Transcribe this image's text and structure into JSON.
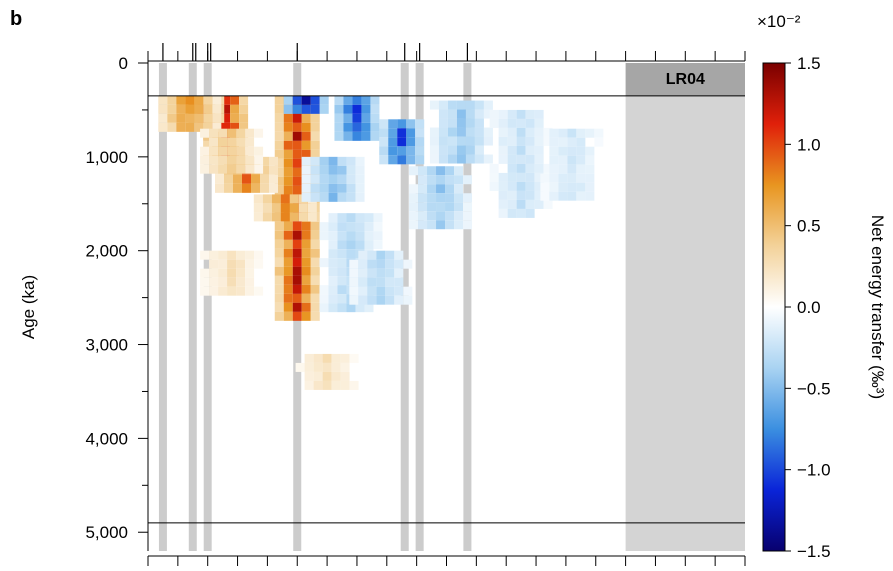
{
  "panel_label": "b",
  "chart_data": {
    "type": "heatmap",
    "ylabel": "Age (ka)",
    "ylim": [
      0,
      5200
    ],
    "y_ticks": [
      0,
      1000,
      2000,
      3000,
      4000,
      5000
    ],
    "y_tick_labels": [
      "0",
      "1,000",
      "2,000",
      "3,000",
      "4,000",
      "5,000"
    ],
    "y_minor_step": 500,
    "x_tick_count": 21,
    "analysis_window_ka": [
      350,
      4900
    ],
    "band_label": "LR04",
    "band_x_range": [
      16,
      20
    ],
    "gray_columns": [
      0.5,
      1.5,
      2.0,
      5.0,
      8.6,
      9.1,
      10.7
    ],
    "top_marker_positions": [
      0.5,
      1.5,
      1.6,
      2.0,
      2.1,
      5.0,
      8.6,
      9.1,
      10.7
    ],
    "colorbar": {
      "label": "Net energy transfer (‰³)",
      "exponent": "×10⁻²",
      "min": -1.5,
      "max": 1.5,
      "tick_values": [
        1.5,
        1.0,
        0.5,
        0.0,
        -0.5,
        -1.0,
        -1.5
      ],
      "tick_labels": [
        "1.5",
        "1.0",
        "0.5",
        "0.0",
        "−0.5",
        "−1.0",
        "−1.5"
      ],
      "colors": [
        "#08006e",
        "#0a24d8",
        "#3b8fe0",
        "#a9d3f2",
        "#ffffff",
        "#f3d29a",
        "#e89520",
        "#e0200a",
        "#7a0000"
      ]
    },
    "features": [
      {
        "x": 5.0,
        "y_start": 350,
        "y_end": 2700,
        "value": 1.4
      },
      {
        "x": 2.6,
        "y_start": 350,
        "y_end": 950,
        "value": 1.5
      },
      {
        "x": 1.8,
        "y_start": 350,
        "y_end": 600,
        "value": 1.1
      },
      {
        "x": 1.4,
        "y_start": 350,
        "y_end": 700,
        "value": 0.9
      },
      {
        "x": 3.3,
        "y_start": 1000,
        "y_end": 1300,
        "value": 1.0
      },
      {
        "x": 4.6,
        "y_start": 1400,
        "y_end": 1600,
        "value": 0.9
      },
      {
        "x": 2.8,
        "y_start": 700,
        "y_end": 1100,
        "value": 0.5
      },
      {
        "x": 5.3,
        "y_start": 350,
        "y_end": 450,
        "value": -1.5
      },
      {
        "x": 7.0,
        "y_start": 350,
        "y_end": 800,
        "value": -1.3
      },
      {
        "x": 8.5,
        "y_start": 600,
        "y_end": 1000,
        "value": -1.1
      },
      {
        "x": 6.2,
        "y_start": 1000,
        "y_end": 1400,
        "value": -0.6
      },
      {
        "x": 6.8,
        "y_start": 1600,
        "y_end": 2600,
        "value": -0.4
      },
      {
        "x": 9.8,
        "y_start": 1100,
        "y_end": 1700,
        "value": -0.5
      },
      {
        "x": 10.5,
        "y_start": 400,
        "y_end": 1000,
        "value": -0.5
      },
      {
        "x": 7.8,
        "y_start": 2000,
        "y_end": 2500,
        "value": -0.4
      },
      {
        "x": 6.0,
        "y_start": 3100,
        "y_end": 3400,
        "value": 0.3
      },
      {
        "x": 2.8,
        "y_start": 2000,
        "y_end": 2400,
        "value": 0.3
      },
      {
        "x": 12.5,
        "y_start": 500,
        "y_end": 1600,
        "value": -0.3
      },
      {
        "x": 14.2,
        "y_start": 700,
        "y_end": 1400,
        "value": -0.25
      }
    ]
  }
}
